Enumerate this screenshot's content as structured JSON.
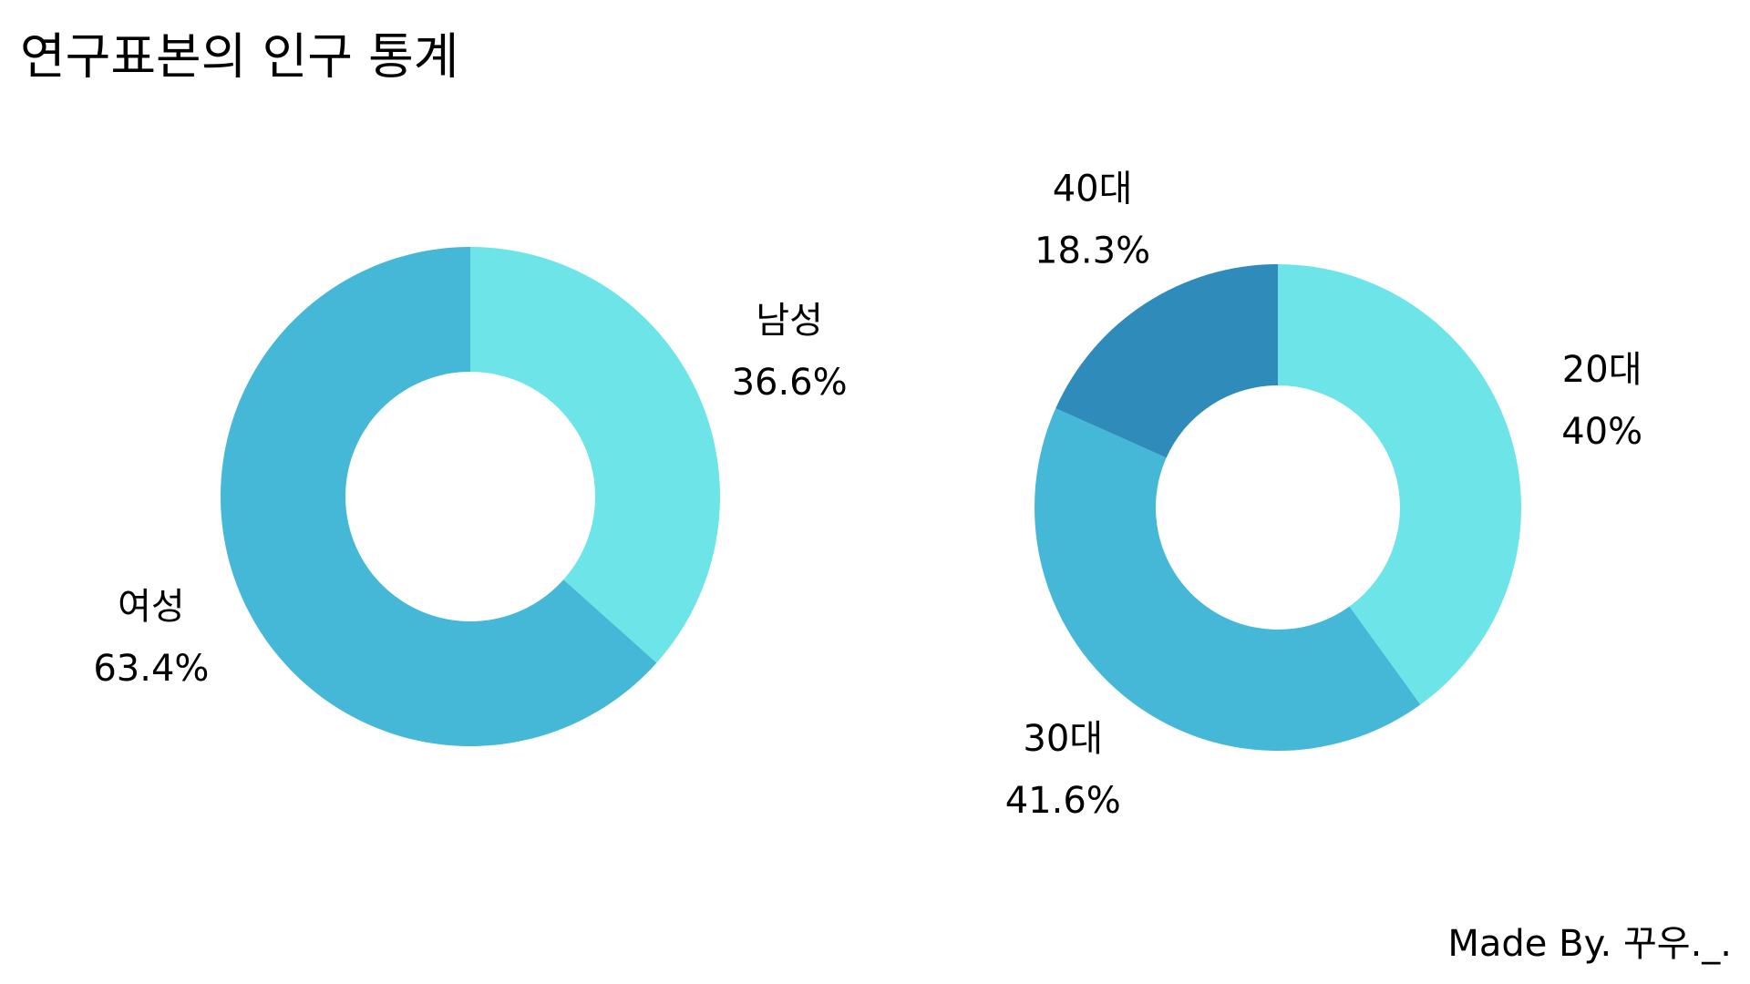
{
  "title": "연구표본의 인구 통계",
  "footer": "Made By. 꾸우._.",
  "chart_data": [
    {
      "type": "donut",
      "categories": [
        "남성",
        "여성"
      ],
      "values": [
        36.6,
        63.4
      ],
      "value_labels": [
        "36.6%",
        "63.4%"
      ],
      "colors": [
        "#6ce4e8",
        "#44b8d6"
      ]
    },
    {
      "type": "donut",
      "categories": [
        "20대",
        "30대",
        "40대"
      ],
      "values": [
        40,
        41.6,
        18.3
      ],
      "value_labels": [
        "40%",
        "41.6%",
        "18.3%"
      ],
      "colors": [
        "#6ce4e8",
        "#44b8d6",
        "#2e8bba"
      ]
    }
  ]
}
